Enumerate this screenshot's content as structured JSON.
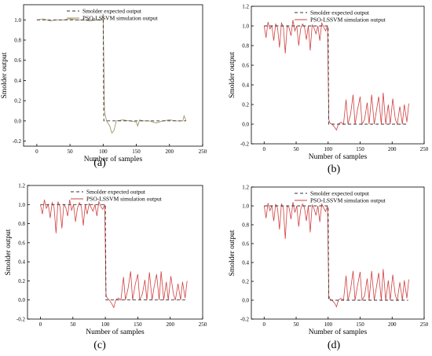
{
  "chart_data": [
    {
      "type": "line",
      "panel": "(a)",
      "xlabel": "Number of samples",
      "ylabel": "Smolder output",
      "xlim": [
        -20,
        250
      ],
      "ylim": [
        -0.25,
        1.15
      ],
      "xticks": [
        0,
        50,
        100,
        150,
        200,
        250
      ],
      "yticks": [
        -0.2,
        0.0,
        0.2,
        0.4,
        0.6,
        0.8,
        1.0
      ],
      "legend_position": "top-center",
      "series": [
        {
          "name": "Smolder expected output",
          "style": "dashed",
          "color": "#333333",
          "x": [
            0,
            100,
            101,
            225
          ],
          "y": [
            1.0,
            1.0,
            0.0,
            0.0
          ]
        },
        {
          "name": "PSO-LSSVM simulation output",
          "style": "solid",
          "color": "#9a8a5a",
          "x": [
            0,
            10,
            20,
            30,
            40,
            50,
            60,
            70,
            80,
            90,
            98,
            100,
            102,
            105,
            110,
            113,
            116,
            120,
            130,
            140,
            150,
            152,
            155,
            160,
            170,
            180,
            190,
            200,
            210,
            220,
            222,
            225
          ],
          "y": [
            1.0,
            1.01,
            0.99,
            1.0,
            1.0,
            1.01,
            1.0,
            1.0,
            0.99,
            1.0,
            1.0,
            1.06,
            0.1,
            0.0,
            -0.05,
            -0.12,
            -0.1,
            0.0,
            0.01,
            0.0,
            -0.01,
            -0.05,
            0.01,
            0.0,
            0.0,
            -0.02,
            0.0,
            0.01,
            0.0,
            0.0,
            0.05,
            0.0
          ]
        }
      ]
    },
    {
      "type": "line",
      "panel": "(b)",
      "xlabel": "Number of samples",
      "ylabel": "Smolder output",
      "xlim": [
        -20,
        250
      ],
      "ylim": [
        -0.2,
        1.2
      ],
      "xticks": [
        0,
        50,
        100,
        150,
        200,
        250
      ],
      "yticks": [
        -0.2,
        0.0,
        0.2,
        0.4,
        0.6,
        0.8,
        1.0,
        1.2
      ],
      "legend_position": "top-center",
      "series": [
        {
          "name": "Smolder expected output",
          "style": "dashed",
          "color": "#333333",
          "x": [
            0,
            100,
            101,
            225
          ],
          "y": [
            1.0,
            1.0,
            0.0,
            0.0
          ]
        },
        {
          "name": "PSO-LSSVM simulation output",
          "style": "solid",
          "color": "#d04040",
          "x": [
            0,
            3,
            6,
            9,
            12,
            15,
            18,
            21,
            24,
            27,
            30,
            33,
            36,
            39,
            42,
            45,
            48,
            51,
            54,
            57,
            60,
            63,
            66,
            69,
            72,
            75,
            78,
            81,
            84,
            87,
            90,
            93,
            96,
            99,
            101,
            103,
            106,
            110,
            113,
            116,
            120,
            124,
            128,
            131,
            135,
            139,
            142,
            146,
            150,
            153,
            157,
            161,
            164,
            168,
            172,
            175,
            179,
            183,
            186,
            190,
            194,
            197,
            201,
            205,
            208,
            212,
            216,
            219,
            223,
            226
          ],
          "y": [
            1.0,
            0.88,
            1.04,
            0.97,
            1.0,
            0.85,
            1.02,
            0.98,
            0.78,
            1.03,
            0.99,
            0.72,
            1.0,
            0.98,
            0.9,
            1.06,
            0.95,
            1.0,
            0.8,
            0.97,
            1.02,
            0.99,
            0.86,
            1.0,
            0.75,
            1.01,
            0.98,
            0.92,
            1.0,
            0.85,
            1.03,
            0.99,
            0.95,
            1.0,
            0.05,
            0.01,
            0.0,
            -0.03,
            -0.06,
            0.0,
            0.02,
            0.0,
            0.25,
            0.0,
            0.1,
            0.3,
            0.0,
            0.15,
            0.28,
            0.0,
            0.05,
            0.22,
            0.0,
            0.3,
            0.0,
            0.12,
            0.28,
            0.0,
            0.32,
            0.0,
            0.2,
            0.0,
            0.26,
            0.05,
            0.0,
            0.18,
            0.0,
            0.2,
            0.02,
            0.21
          ]
        }
      ]
    },
    {
      "type": "line",
      "panel": "(c)",
      "xlabel": "Number of samples",
      "ylabel": "Smolder output",
      "xlim": [
        -20,
        250
      ],
      "ylim": [
        -0.2,
        1.2
      ],
      "xticks": [
        0,
        50,
        100,
        150,
        200,
        250
      ],
      "yticks": [
        -0.2,
        0.0,
        0.2,
        0.4,
        0.6,
        0.8,
        1.0,
        1.2
      ],
      "legend_position": "top-center",
      "series": [
        {
          "name": "Smolder expected output",
          "style": "dashed",
          "color": "#333333",
          "x": [
            0,
            100,
            101,
            225
          ],
          "y": [
            1.0,
            1.0,
            0.0,
            0.0
          ]
        },
        {
          "name": "PSO-LSSVM simulation output",
          "style": "solid",
          "color": "#d04040",
          "x": [
            0,
            3,
            6,
            9,
            12,
            15,
            18,
            21,
            24,
            27,
            30,
            33,
            36,
            39,
            42,
            45,
            48,
            51,
            54,
            57,
            60,
            63,
            66,
            69,
            72,
            75,
            78,
            81,
            84,
            87,
            90,
            93,
            96,
            99,
            101,
            103,
            106,
            110,
            113,
            116,
            120,
            124,
            128,
            131,
            135,
            139,
            142,
            146,
            150,
            153,
            157,
            161,
            164,
            168,
            172,
            175,
            179,
            183,
            186,
            190,
            194,
            197,
            201,
            205,
            208,
            212,
            216,
            219,
            223,
            226
          ],
          "y": [
            1.0,
            0.9,
            1.05,
            0.96,
            1.0,
            0.86,
            1.02,
            0.97,
            0.7,
            1.03,
            0.98,
            0.75,
            1.0,
            0.97,
            0.88,
            1.05,
            0.94,
            1.0,
            0.82,
            0.96,
            1.02,
            0.98,
            0.78,
            1.0,
            0.9,
            1.01,
            0.97,
            0.93,
            1.0,
            0.88,
            1.03,
            0.98,
            0.95,
            1.0,
            0.05,
            0.02,
            0.0,
            -0.04,
            -0.08,
            0.0,
            0.02,
            0.0,
            0.24,
            0.0,
            0.12,
            0.3,
            0.0,
            0.16,
            0.27,
            0.0,
            0.06,
            0.21,
            0.0,
            0.29,
            0.0,
            0.13,
            0.27,
            0.0,
            0.3,
            0.0,
            0.19,
            0.0,
            0.25,
            0.06,
            0.0,
            0.17,
            0.0,
            0.19,
            0.02,
            0.2
          ]
        }
      ]
    },
    {
      "type": "line",
      "panel": "(d)",
      "xlabel": "Number of samples",
      "ylabel": "Smolder output",
      "xlim": [
        -20,
        250
      ],
      "ylim": [
        -0.2,
        1.2
      ],
      "xticks": [
        0,
        50,
        100,
        150,
        200,
        250
      ],
      "yticks": [
        -0.2,
        0.0,
        0.2,
        0.4,
        0.6,
        0.8,
        1.0,
        1.2
      ],
      "legend_position": "top-center",
      "series": [
        {
          "name": "Smolder expected output",
          "style": "dashed",
          "color": "#333333",
          "x": [
            0,
            100,
            101,
            225
          ],
          "y": [
            1.0,
            1.0,
            0.0,
            0.0
          ]
        },
        {
          "name": "PSO-LSSVM simulation output",
          "style": "solid",
          "color": "#d04040",
          "x": [
            0,
            3,
            6,
            9,
            12,
            15,
            18,
            21,
            24,
            27,
            30,
            33,
            36,
            39,
            42,
            45,
            48,
            51,
            54,
            57,
            60,
            63,
            66,
            69,
            72,
            75,
            78,
            81,
            84,
            87,
            90,
            93,
            96,
            99,
            101,
            103,
            106,
            110,
            113,
            116,
            120,
            124,
            128,
            131,
            135,
            139,
            142,
            146,
            150,
            153,
            157,
            161,
            164,
            168,
            172,
            175,
            179,
            183,
            186,
            190,
            194,
            197,
            201,
            205,
            208,
            212,
            216,
            219,
            223,
            226
          ],
          "y": [
            1.0,
            0.87,
            1.03,
            0.95,
            1.0,
            0.84,
            1.02,
            0.97,
            0.75,
            1.02,
            0.98,
            0.65,
            1.0,
            0.98,
            0.86,
            1.04,
            0.93,
            1.0,
            0.78,
            0.96,
            1.02,
            0.98,
            0.84,
            1.0,
            0.72,
            1.01,
            0.97,
            0.9,
            1.0,
            0.83,
            1.02,
            0.98,
            0.94,
            1.0,
            0.05,
            0.01,
            0.0,
            -0.03,
            -0.07,
            0.0,
            0.02,
            0.0,
            0.26,
            0.0,
            0.11,
            0.31,
            0.0,
            0.16,
            0.3,
            0.0,
            0.05,
            0.23,
            0.0,
            0.31,
            0.0,
            0.12,
            0.29,
            0.0,
            0.33,
            0.0,
            0.21,
            0.0,
            0.27,
            0.05,
            0.0,
            0.19,
            0.0,
            0.21,
            0.02,
            0.22
          ]
        }
      ]
    }
  ]
}
